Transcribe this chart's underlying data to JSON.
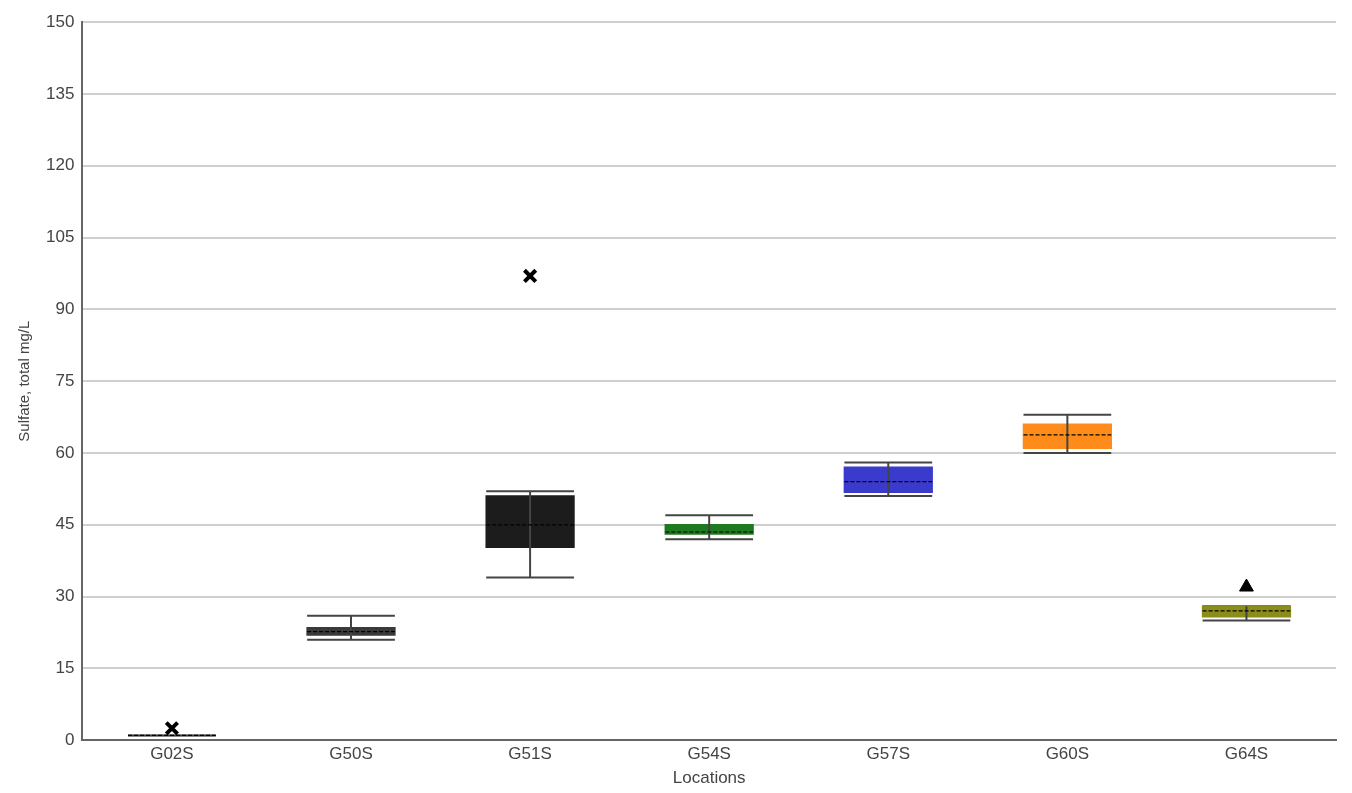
{
  "chart_data": {
    "type": "box",
    "xlabel": "Locations",
    "ylabel": "Sulfate, total mg/L",
    "categories": [
      "G02S",
      "G50S",
      "G51S",
      "G54S",
      "G57S",
      "G60S",
      "G64S"
    ],
    "ylim": [
      0,
      150
    ],
    "yticks": [
      0,
      15,
      30,
      45,
      60,
      75,
      90,
      105,
      120,
      135,
      150
    ],
    "grid": "y",
    "series": [
      {
        "type": "box",
        "marker": "cross",
        "colors": [
          "#444444",
          "#3a3a3a",
          "#1c1c1c",
          "#1f7a1f",
          "#3a3acc",
          "#ff8c1a",
          "#8c8c1a"
        ],
        "boxes": [
          {
            "low": 1,
            "q1": 1,
            "median": 1,
            "q3": 1,
            "high": 1,
            "outliers": [
              2.5
            ]
          },
          {
            "low": 21,
            "q1": 22,
            "median": 22.7,
            "q3": 23.5,
            "high": 26
          },
          {
            "low": 34,
            "q1": 40.3,
            "median": 45,
            "q3": 51,
            "high": 52,
            "outliers": [
              97
            ]
          },
          {
            "low": 42,
            "q1": 43.1,
            "median": 43.5,
            "q3": 45,
            "high": 47
          },
          {
            "low": 51,
            "q1": 51.8,
            "median": 54,
            "q3": 57,
            "high": 58
          },
          {
            "low": 60,
            "q1": 61,
            "median": 63.8,
            "q3": 66,
            "high": 68
          },
          {
            "low": 25,
            "q1": 25.8,
            "median": 27,
            "q3": 28,
            "high": 28
          }
        ]
      },
      {
        "type": "scatter",
        "marker": "triangle",
        "color": "#000000",
        "x": [
          "G64S"
        ],
        "values": [
          32
        ]
      }
    ]
  }
}
